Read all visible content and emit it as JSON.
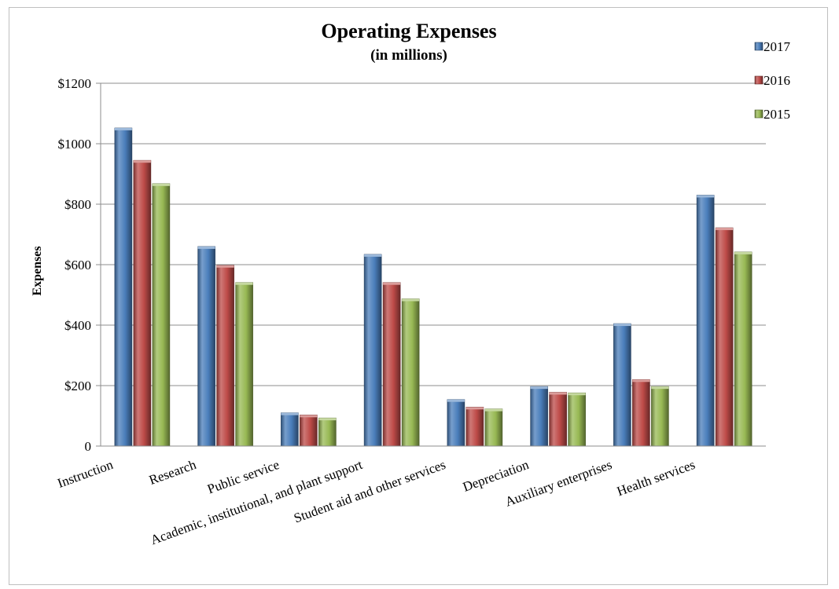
{
  "chart_data": {
    "type": "bar",
    "title": "Operating Expenses",
    "subtitle": "(in millions)",
    "ylabel": "Expenses",
    "xlabel": "",
    "ylim": [
      0,
      1200
    ],
    "yticks": [
      "0",
      "$200",
      "$400",
      "$600",
      "$800",
      "$1000",
      "$1200"
    ],
    "ytick_values": [
      0,
      200,
      400,
      600,
      800,
      1000,
      1200
    ],
    "grid": true,
    "legend_position": "top-right",
    "categories": [
      "Instruction",
      "Research",
      "Public service",
      "Academic, institutional, and plant support",
      "Student aid and other services",
      "Depreciation",
      "Auxiliary enterprises",
      "Health services"
    ],
    "series": [
      {
        "name": "2017",
        "color": "#4a7ebb",
        "values": [
          1052,
          660,
          110,
          634,
          154,
          197,
          405,
          830
        ]
      },
      {
        "name": "2016",
        "color": "#be4b48",
        "values": [
          945,
          598,
          103,
          541,
          129,
          178,
          220,
          722
        ]
      },
      {
        "name": "2015",
        "color": "#98b954",
        "values": [
          868,
          541,
          93,
          487,
          123,
          176,
          197,
          642
        ]
      }
    ]
  }
}
